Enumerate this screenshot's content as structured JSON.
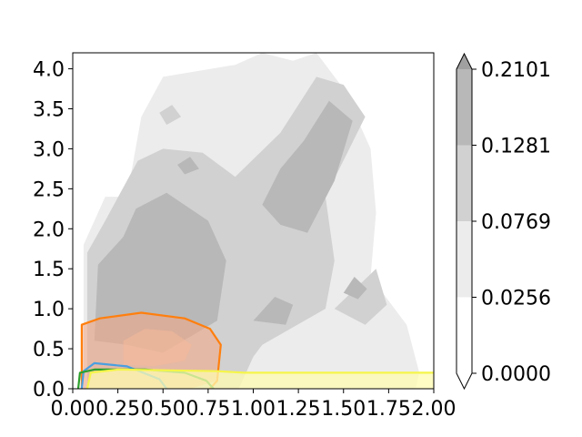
{
  "chart_data": [
    {
      "type": "contour",
      "title": "",
      "xlabel": "",
      "ylabel": "",
      "xlim": [
        0.0,
        2.0
      ],
      "ylim": [
        0.0,
        4.2
      ],
      "x_ticks": [
        "0.00",
        "0.25",
        "0.50",
        "0.75",
        "1.00",
        "1.25",
        "1.50",
        "1.75",
        "2.00"
      ],
      "y_ticks": [
        "0.0",
        "0.5",
        "1.0",
        "1.5",
        "2.0",
        "2.5",
        "3.0",
        "3.5",
        "4.0"
      ],
      "x_tick_values": [
        0,
        0.25,
        0.5,
        0.75,
        1.0,
        1.25,
        1.5,
        1.75,
        2.0
      ],
      "y_tick_values": [
        0,
        0.5,
        1.0,
        1.5,
        2.0,
        2.5,
        3.0,
        3.5,
        4.0
      ],
      "grid": false,
      "filled_levels": [
        {
          "range": [
            0.0256,
            0.0769
          ],
          "color": "#ececec",
          "polygons": [
            [
              [
                0.06,
                0.0
              ],
              [
                0.06,
                1.8
              ],
              [
                0.18,
                2.4
              ],
              [
                0.3,
                2.4
              ],
              [
                0.38,
                3.4
              ],
              [
                0.5,
                3.9
              ],
              [
                0.9,
                4.05
              ],
              [
                1.05,
                4.2
              ],
              [
                1.22,
                4.1
              ],
              [
                1.35,
                4.2
              ],
              [
                1.5,
                3.75
              ],
              [
                1.65,
                3.0
              ],
              [
                1.68,
                2.2
              ],
              [
                1.65,
                1.4
              ],
              [
                1.85,
                0.8
              ],
              [
                1.92,
                0.2
              ],
              [
                1.9,
                0.0
              ]
            ]
          ]
        },
        {
          "range": [
            0.0769,
            0.1281
          ],
          "color": "#d1d1d1",
          "polygons": [
            [
              [
                0.08,
                0.0
              ],
              [
                0.08,
                1.7
              ],
              [
                0.18,
                2.1
              ],
              [
                0.36,
                2.85
              ],
              [
                0.5,
                3.0
              ],
              [
                0.72,
                2.95
              ],
              [
                0.9,
                2.65
              ],
              [
                1.15,
                3.2
              ],
              [
                1.35,
                3.9
              ],
              [
                1.5,
                3.8
              ],
              [
                1.62,
                3.4
              ],
              [
                1.4,
                2.4
              ],
              [
                1.45,
                1.6
              ],
              [
                1.4,
                1.0
              ],
              [
                1.05,
                0.55
              ],
              [
                1.0,
                0.4
              ],
              [
                0.92,
                0.0
              ]
            ],
            [
              [
                1.45,
                1.0
              ],
              [
                1.68,
                1.5
              ],
              [
                1.74,
                1.05
              ],
              [
                1.62,
                0.8
              ]
            ],
            [
              [
                0.48,
                3.45
              ],
              [
                0.55,
                3.55
              ],
              [
                0.6,
                3.4
              ],
              [
                0.52,
                3.3
              ]
            ]
          ]
        },
        {
          "range": [
            0.1281,
            0.2101
          ],
          "color": "#b8b8b8",
          "polygons": [
            [
              [
                0.12,
                0.6
              ],
              [
                0.14,
                1.55
              ],
              [
                0.28,
                1.9
              ],
              [
                0.35,
                2.25
              ],
              [
                0.52,
                2.45
              ],
              [
                0.75,
                2.1
              ],
              [
                0.85,
                1.6
              ],
              [
                0.8,
                0.85
              ],
              [
                0.5,
                0.45
              ],
              [
                0.3,
                0.55
              ]
            ],
            [
              [
                1.05,
                2.3
              ],
              [
                1.15,
                2.75
              ],
              [
                1.28,
                3.1
              ],
              [
                1.42,
                3.6
              ],
              [
                1.55,
                3.35
              ],
              [
                1.45,
                2.6
              ],
              [
                1.3,
                1.95
              ],
              [
                1.15,
                2.05
              ]
            ],
            [
              [
                1.0,
                0.85
              ],
              [
                1.12,
                1.15
              ],
              [
                1.22,
                1.05
              ],
              [
                1.18,
                0.8
              ]
            ],
            [
              [
                1.5,
                1.2
              ],
              [
                1.56,
                1.4
              ],
              [
                1.63,
                1.25
              ],
              [
                1.58,
                1.12
              ]
            ],
            [
              [
                0.58,
                2.8
              ],
              [
                0.65,
                2.9
              ],
              [
                0.7,
                2.75
              ],
              [
                0.62,
                2.68
              ]
            ]
          ]
        }
      ],
      "overlays": [
        {
          "color": "#ff7f0e",
          "fill_levels": [
            {
              "color": "#f4a582",
              "opacity": 0.55,
              "polygon": [
                [
                  0.05,
                  0.0
                ],
                [
                  0.05,
                  0.8
                ],
                [
                  0.15,
                  0.88
                ],
                [
                  0.38,
                  0.95
                ],
                [
                  0.62,
                  0.88
                ],
                [
                  0.76,
                  0.75
                ],
                [
                  0.82,
                  0.55
                ],
                [
                  0.8,
                  0.1
                ],
                [
                  0.65,
                  0.0
                ]
              ]
            },
            {
              "color": "#f7b99a",
              "opacity": 0.5,
              "polygon": [
                [
                  0.28,
                  0.3
                ],
                [
                  0.28,
                  0.6
                ],
                [
                  0.4,
                  0.75
                ],
                [
                  0.55,
                  0.72
                ],
                [
                  0.66,
                  0.55
                ],
                [
                  0.62,
                  0.35
                ],
                [
                  0.45,
                  0.28
                ]
              ]
            }
          ],
          "line": [
            [
              0.05,
              0.0
            ],
            [
              0.05,
              0.8
            ],
            [
              0.15,
              0.88
            ],
            [
              0.38,
              0.95
            ],
            [
              0.62,
              0.88
            ],
            [
              0.76,
              0.75
            ],
            [
              0.82,
              0.55
            ],
            [
              0.8,
              0.1
            ],
            [
              0.76,
              0.0
            ]
          ]
        },
        {
          "color": "#4a9fe0",
          "line": [
            [
              0.05,
              0.0
            ],
            [
              0.06,
              0.22
            ],
            [
              0.12,
              0.32
            ],
            [
              0.3,
              0.28
            ],
            [
              0.48,
              0.12
            ],
            [
              0.52,
              0.0
            ]
          ]
        },
        {
          "color": "#2ca02c",
          "line": [
            [
              0.03,
              0.0
            ],
            [
              0.04,
              0.2
            ],
            [
              0.12,
              0.24
            ],
            [
              0.4,
              0.24
            ],
            [
              0.62,
              0.2
            ],
            [
              0.74,
              0.1
            ],
            [
              0.78,
              0.0
            ]
          ]
        },
        {
          "color": "#f5f54a",
          "fill": {
            "color": "#fffbb0",
            "opacity": 0.75,
            "polygon": [
              [
                0.08,
                0.0
              ],
              [
                0.1,
                0.2
              ],
              [
                0.25,
                0.24
              ],
              [
                0.8,
                0.22
              ],
              [
                0.95,
                0.2
              ],
              [
                2.0,
                0.2
              ],
              [
                2.0,
                0.0
              ]
            ]
          },
          "line": [
            [
              0.08,
              0.0
            ],
            [
              0.1,
              0.2
            ],
            [
              0.25,
              0.24
            ],
            [
              0.8,
              0.22
            ],
            [
              0.95,
              0.2
            ],
            [
              2.0,
              0.2
            ]
          ]
        }
      ]
    },
    {
      "type": "colorbar",
      "levels": [
        0.0,
        0.0256,
        0.0769,
        0.1281,
        0.2101
      ],
      "tick_labels": [
        "0.0000",
        "0.0256",
        "0.0769",
        "0.1281",
        "0.2101"
      ],
      "band_colors": [
        "#ffffff",
        "#ececec",
        "#d1d1d1",
        "#b8b8b8"
      ],
      "extend_min_color": "#ffffff",
      "extend_max_color": "#a0a0a0"
    }
  ]
}
